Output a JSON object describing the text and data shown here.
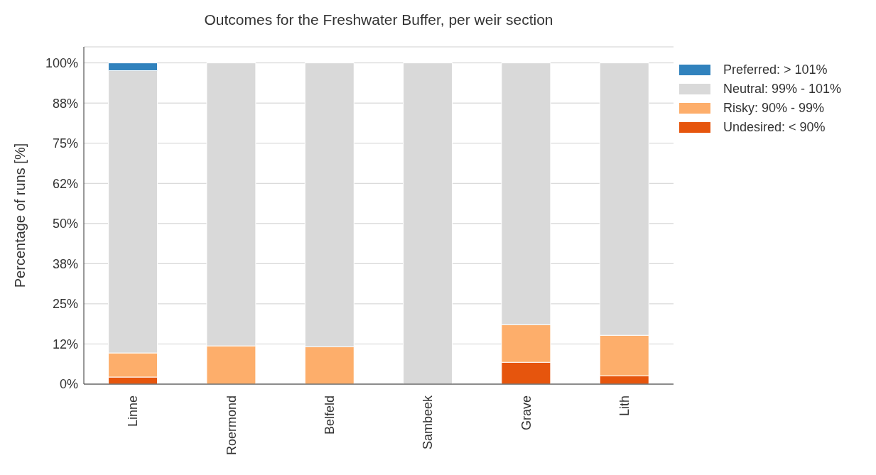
{
  "chart_data": {
    "type": "bar",
    "title": "Outcomes for the Freshwater Buffer, per weir section",
    "ylabel": "Percentage of runs [%]",
    "categories": [
      "Linne",
      "Roermond",
      "Belfeld",
      "Sambeek",
      "Grave",
      "Lith"
    ],
    "stacked": true,
    "grid": "y",
    "legend": "top right",
    "ylim": [
      0,
      105
    ],
    "yticks": [
      {
        "value": 0,
        "label": "0%"
      },
      {
        "value": 12.5,
        "label": "12%"
      },
      {
        "value": 25,
        "label": "25%"
      },
      {
        "value": 37.5,
        "label": "38%"
      },
      {
        "value": 50,
        "label": "50%"
      },
      {
        "value": 62.5,
        "label": "62%"
      },
      {
        "value": 75,
        "label": "75%"
      },
      {
        "value": 87.5,
        "label": "88%"
      },
      {
        "value": 100,
        "label": "100%"
      }
    ],
    "series": [
      {
        "name": "Undesired: < 90%",
        "color": "#e6550d",
        "values": [
          2.2,
          0,
          0,
          0,
          6.8,
          2.6
        ]
      },
      {
        "name": "Risky: 90% - 99%",
        "color": "#fdae6b",
        "values": [
          7.5,
          11.9,
          11.6,
          0,
          11.7,
          12.6
        ]
      },
      {
        "name": "Neutral: 99% - 101%",
        "color": "#d9d9d9",
        "values": [
          87.9,
          88.1,
          88.4,
          100,
          81.5,
          84.8
        ]
      },
      {
        "name": "Preferred: > 101%",
        "color": "#3182bd",
        "values": [
          2.4,
          0,
          0,
          0,
          0,
          0
        ]
      }
    ]
  }
}
